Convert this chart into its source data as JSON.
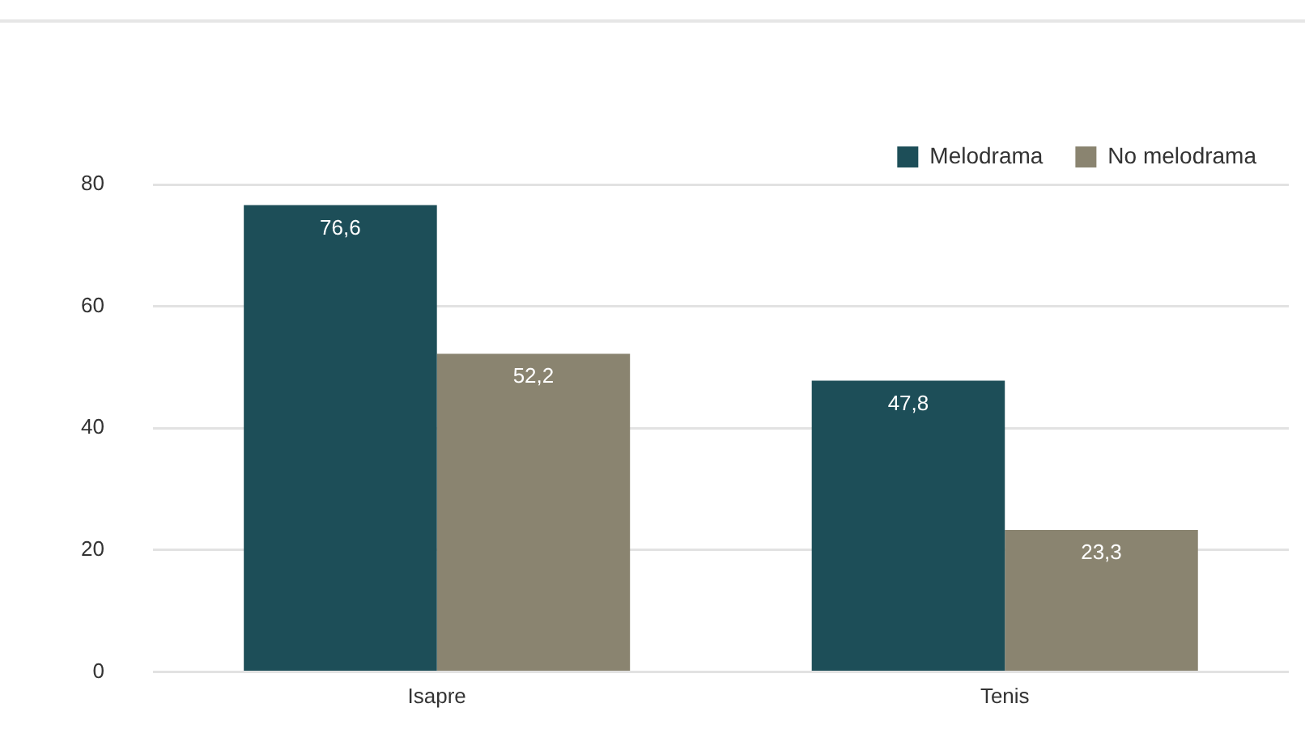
{
  "chart_data": {
    "type": "bar",
    "categories": [
      "Isapre",
      "Tenis"
    ],
    "series": [
      {
        "name": "Melodrama",
        "color": "#1d4e58",
        "values": [
          76.6,
          47.8
        ],
        "value_labels": [
          "76,6",
          "47,8"
        ]
      },
      {
        "name": "No melodrama",
        "color": "#8a8470",
        "values": [
          52.2,
          23.3
        ],
        "value_labels": [
          "52,2",
          "23,3"
        ]
      }
    ],
    "ylim": [
      0,
      80
    ],
    "yticks": [
      0,
      20,
      40,
      60,
      80
    ],
    "grid": "y",
    "legend": "top right"
  }
}
